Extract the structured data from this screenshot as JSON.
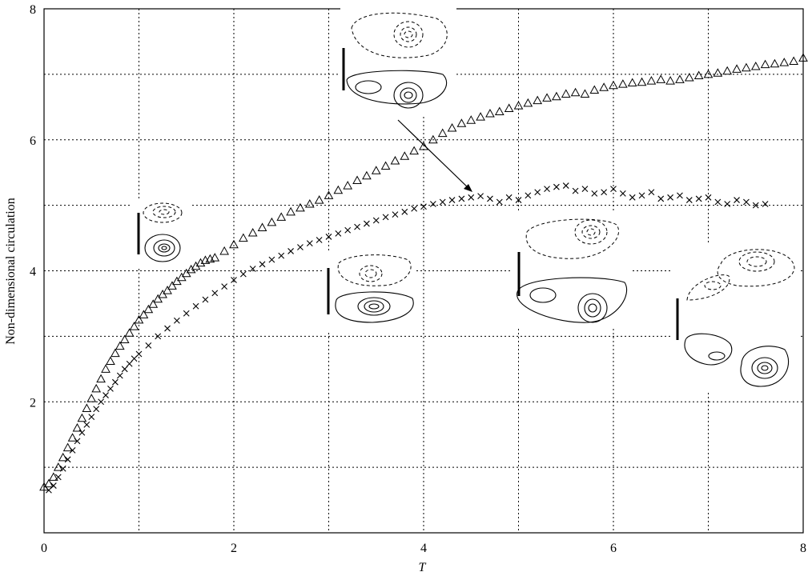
{
  "chart_data": {
    "type": "scatter",
    "title": "",
    "xlabel": "T",
    "ylabel": "Non-dimensional circulation",
    "xlim": [
      0,
      8
    ],
    "ylim": [
      0,
      8
    ],
    "xticks": [
      0,
      2,
      4,
      6,
      8
    ],
    "yticks": [
      2,
      4,
      6,
      8
    ],
    "xtick_labels": [
      "0",
      "2",
      "4",
      "6",
      "8"
    ],
    "ytick_labels": [
      "2",
      "4",
      "6",
      "8"
    ],
    "grid": true,
    "grid_x": [
      1,
      2,
      3,
      4,
      5,
      6,
      7
    ],
    "grid_y": [
      1,
      2,
      3,
      4,
      5,
      6,
      7
    ],
    "series": [
      {
        "marker": "triangle",
        "x": [
          0.0,
          0.05,
          0.1,
          0.15,
          0.2,
          0.25,
          0.3,
          0.35,
          0.4,
          0.45,
          0.5,
          0.55,
          0.6,
          0.65,
          0.7,
          0.75,
          0.8,
          0.85,
          0.9,
          0.95,
          1.0,
          1.05,
          1.1,
          1.15,
          1.2,
          1.25,
          1.3,
          1.35,
          1.4,
          1.45,
          1.5,
          1.55,
          1.6,
          1.65,
          1.7,
          1.75,
          1.8,
          1.9,
          2.0,
          2.1,
          2.2,
          2.3,
          2.4,
          2.5,
          2.6,
          2.7,
          2.8,
          2.9,
          3.0,
          3.1,
          3.2,
          3.3,
          3.4,
          3.5,
          3.6,
          3.7,
          3.8,
          3.9,
          4.0,
          4.1,
          4.2,
          4.3,
          4.4,
          4.5,
          4.6,
          4.7,
          4.8,
          4.9,
          5.0,
          5.1,
          5.2,
          5.3,
          5.4,
          5.5,
          5.6,
          5.7,
          5.8,
          5.9,
          6.0,
          6.1,
          6.2,
          6.3,
          6.4,
          6.5,
          6.6,
          6.7,
          6.8,
          6.9,
          7.0,
          7.1,
          7.2,
          7.3,
          7.4,
          7.5,
          7.6,
          7.7,
          7.8,
          7.9,
          8.0
        ],
        "y": [
          0.7,
          0.75,
          0.85,
          1.0,
          1.15,
          1.3,
          1.45,
          1.6,
          1.75,
          1.9,
          2.05,
          2.2,
          2.35,
          2.5,
          2.62,
          2.74,
          2.85,
          2.95,
          3.05,
          3.15,
          3.25,
          3.33,
          3.41,
          3.49,
          3.57,
          3.64,
          3.7,
          3.77,
          3.84,
          3.9,
          3.96,
          4.02,
          4.07,
          4.12,
          4.16,
          4.18,
          4.2,
          4.3,
          4.4,
          4.5,
          4.58,
          4.66,
          4.74,
          4.82,
          4.9,
          4.96,
          5.02,
          5.08,
          5.15,
          5.23,
          5.3,
          5.38,
          5.45,
          5.53,
          5.6,
          5.68,
          5.75,
          5.83,
          5.9,
          6.0,
          6.1,
          6.18,
          6.25,
          6.3,
          6.35,
          6.4,
          6.43,
          6.48,
          6.52,
          6.56,
          6.6,
          6.64,
          6.66,
          6.7,
          6.72,
          6.7,
          6.76,
          6.8,
          6.83,
          6.85,
          6.87,
          6.88,
          6.9,
          6.92,
          6.9,
          6.92,
          6.95,
          6.98,
          7.0,
          7.02,
          7.05,
          7.08,
          7.1,
          7.12,
          7.15,
          7.16,
          7.18,
          7.2,
          7.25
        ]
      },
      {
        "marker": "x",
        "x": [
          0.05,
          0.1,
          0.15,
          0.2,
          0.25,
          0.3,
          0.35,
          0.4,
          0.45,
          0.5,
          0.55,
          0.6,
          0.65,
          0.7,
          0.75,
          0.8,
          0.85,
          0.9,
          0.95,
          1.0,
          1.1,
          1.2,
          1.3,
          1.4,
          1.5,
          1.6,
          1.7,
          1.8,
          1.9,
          2.0,
          2.1,
          2.2,
          2.3,
          2.4,
          2.5,
          2.6,
          2.7,
          2.8,
          2.9,
          3.0,
          3.1,
          3.2,
          3.3,
          3.4,
          3.5,
          3.6,
          3.7,
          3.8,
          3.9,
          4.0,
          4.1,
          4.2,
          4.3,
          4.4,
          4.5,
          4.6,
          4.7,
          4.8,
          4.9,
          5.0,
          5.1,
          5.2,
          5.3,
          5.4,
          5.5,
          5.6,
          5.7,
          5.8,
          5.9,
          6.0,
          6.1,
          6.2,
          6.3,
          6.4,
          6.5,
          6.6,
          6.7,
          6.8,
          6.9,
          7.0,
          7.1,
          7.2,
          7.3,
          7.4,
          7.5,
          7.6
        ],
        "y": [
          0.65,
          0.72,
          0.85,
          0.98,
          1.12,
          1.26,
          1.4,
          1.53,
          1.65,
          1.77,
          1.89,
          2.0,
          2.1,
          2.2,
          2.3,
          2.4,
          2.5,
          2.58,
          2.66,
          2.73,
          2.86,
          3.0,
          3.12,
          3.24,
          3.35,
          3.46,
          3.56,
          3.66,
          3.76,
          3.86,
          3.95,
          4.03,
          4.1,
          4.17,
          4.23,
          4.3,
          4.36,
          4.42,
          4.47,
          4.52,
          4.57,
          4.62,
          4.67,
          4.72,
          4.77,
          4.82,
          4.86,
          4.9,
          4.95,
          4.98,
          5.02,
          5.05,
          5.08,
          5.1,
          5.12,
          5.14,
          5.1,
          5.05,
          5.12,
          5.08,
          5.15,
          5.2,
          5.25,
          5.28,
          5.3,
          5.22,
          5.25,
          5.18,
          5.2,
          5.25,
          5.18,
          5.12,
          5.15,
          5.2,
          5.1,
          5.12,
          5.15,
          5.08,
          5.1,
          5.12,
          5.05,
          5.02,
          5.08,
          5.05,
          5.0,
          5.02
        ]
      }
    ]
  }
}
